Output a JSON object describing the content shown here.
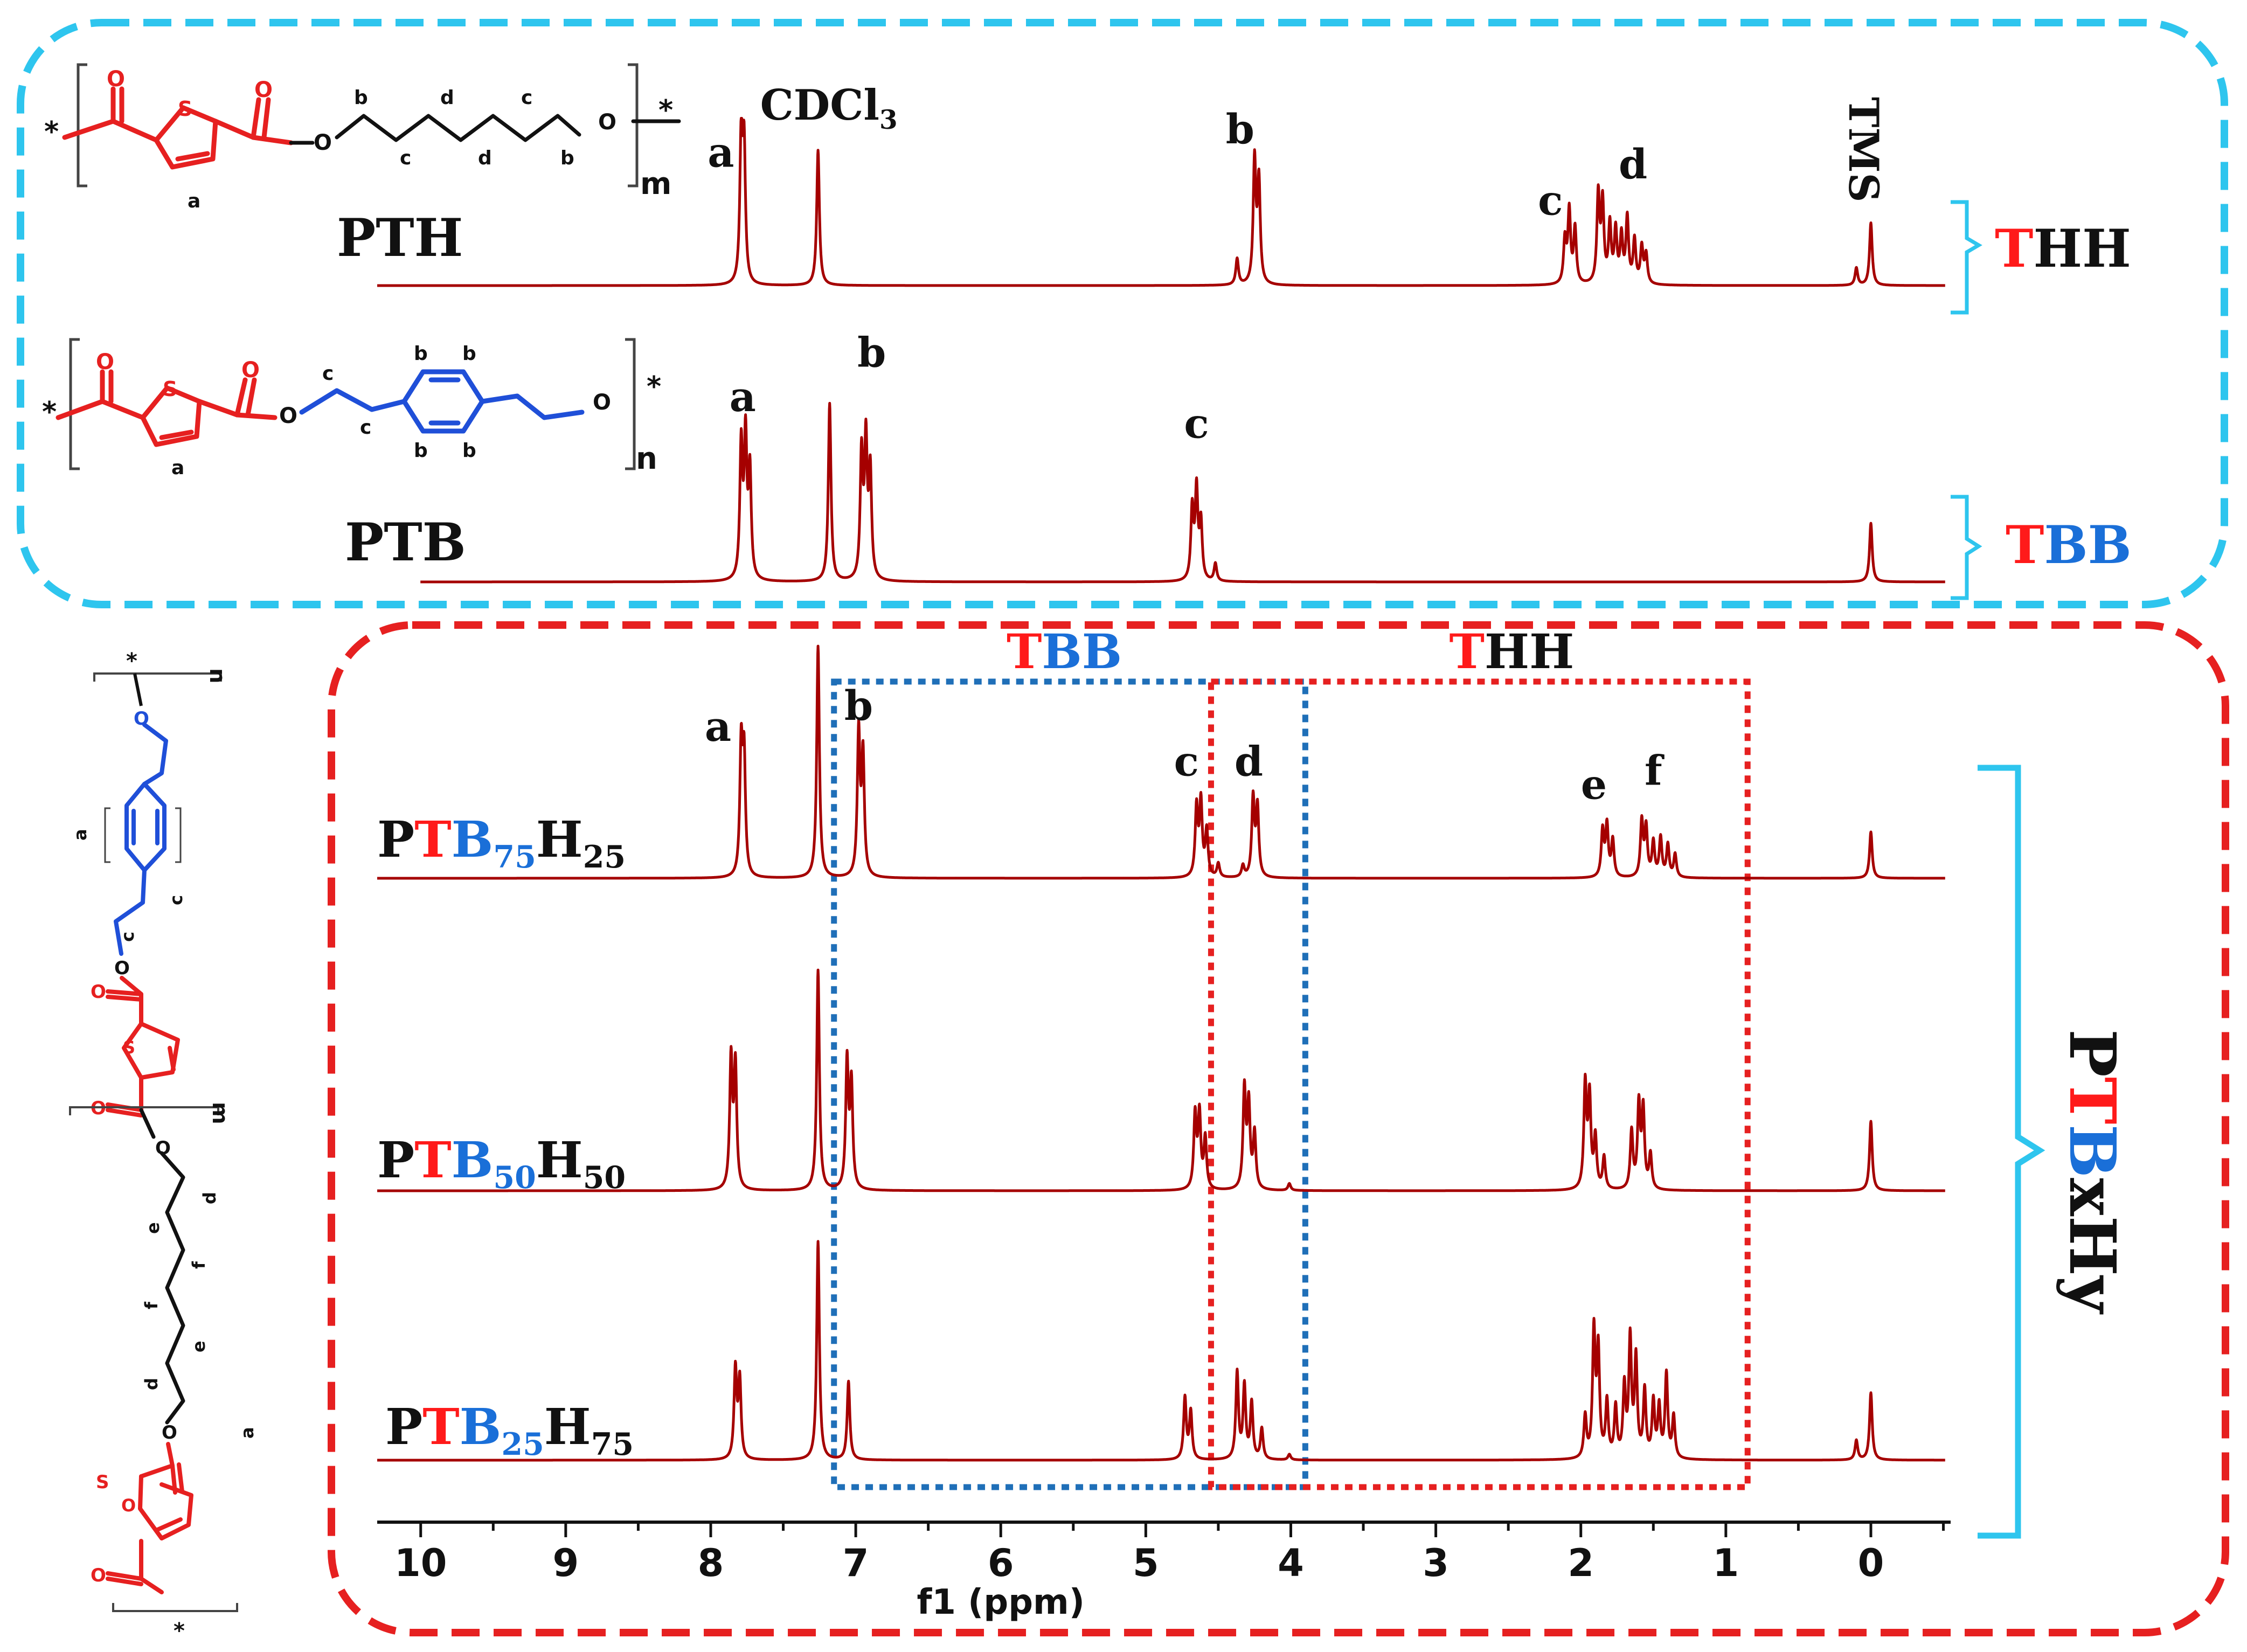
{
  "colors": {
    "spectrum": "#a50000",
    "top_box": "#2ec5ee",
    "bottom_box": "#e62020",
    "bracket": "#2ec5ee",
    "blue_region": "#1f6fb8",
    "red_region": "#e62020",
    "red_text": "#ff1a1a",
    "blue_text": "#1a6fd8"
  },
  "chart_data": {
    "type": "line",
    "xlabel": "f1 (ppm)",
    "xlim": [
      10.3,
      -0.55
    ],
    "xticks": [
      10,
      9,
      8,
      7,
      6,
      5,
      4,
      3,
      2,
      1,
      0
    ],
    "spectra": [
      {
        "id": "PTH",
        "label_parts": [
          {
            "t": "PTH",
            "c": "k"
          }
        ],
        "group": "THH",
        "group_parts": [
          {
            "t": "T",
            "c": "r"
          },
          {
            "t": "HH",
            "c": "k"
          }
        ],
        "peaks": [
          {
            "ppm": 7.79,
            "h": 0.98
          },
          {
            "ppm": 7.77,
            "h": 0.9
          },
          {
            "ppm": 7.26,
            "h": 0.93
          },
          {
            "ppm": 4.37,
            "h": 0.18
          },
          {
            "ppm": 4.25,
            "h": 0.85
          },
          {
            "ppm": 4.22,
            "h": 0.7
          },
          {
            "ppm": 2.11,
            "h": 0.3
          },
          {
            "ppm": 2.08,
            "h": 0.5
          },
          {
            "ppm": 2.04,
            "h": 0.38
          },
          {
            "ppm": 1.88,
            "h": 0.61
          },
          {
            "ppm": 1.85,
            "h": 0.55
          },
          {
            "ppm": 1.8,
            "h": 0.4
          },
          {
            "ppm": 1.76,
            "h": 0.36
          },
          {
            "ppm": 1.72,
            "h": 0.32
          },
          {
            "ppm": 1.68,
            "h": 0.45
          },
          {
            "ppm": 1.63,
            "h": 0.3
          },
          {
            "ppm": 1.58,
            "h": 0.25
          },
          {
            "ppm": 1.55,
            "h": 0.2
          },
          {
            "ppm": 0.1,
            "h": 0.12
          },
          {
            "ppm": 0.0,
            "h": 0.43
          }
        ],
        "peak_labels": [
          {
            "t": "a",
            "ppm": 7.93,
            "dy": 0.78
          },
          {
            "t": "b",
            "ppm": 4.35,
            "dy": 0.94
          },
          {
            "t": "c",
            "ppm": 2.21,
            "dy": 0.45
          },
          {
            "t": "d",
            "ppm": 1.64,
            "dy": 0.7
          }
        ]
      },
      {
        "id": "PTB",
        "label_parts": [
          {
            "t": "PTB",
            "c": "k"
          }
        ],
        "group": "TBB",
        "group_parts": [
          {
            "t": "T",
            "c": "r"
          },
          {
            "t": "BB",
            "c": "b"
          }
        ],
        "peaks": [
          {
            "ppm": 7.79,
            "h": 0.75
          },
          {
            "ppm": 7.76,
            "h": 0.78
          },
          {
            "ppm": 7.73,
            "h": 0.6
          },
          {
            "ppm": 7.18,
            "h": 1.0
          },
          {
            "ppm": 6.96,
            "h": 0.7
          },
          {
            "ppm": 6.93,
            "h": 0.76
          },
          {
            "ppm": 6.9,
            "h": 0.6
          },
          {
            "ppm": 4.68,
            "h": 0.4
          },
          {
            "ppm": 4.65,
            "h": 0.5
          },
          {
            "ppm": 4.62,
            "h": 0.32
          },
          {
            "ppm": 4.52,
            "h": 0.1
          },
          {
            "ppm": 0.0,
            "h": 0.33
          }
        ],
        "peak_labels": [
          {
            "t": "a",
            "ppm": 7.78,
            "dy": 0.93
          },
          {
            "t": "b",
            "ppm": 6.89,
            "dy": 1.18
          },
          {
            "t": "c",
            "ppm": 4.65,
            "dy": 0.78
          }
        ]
      },
      {
        "id": "PTB75H25",
        "label_parts": [
          {
            "t": "P",
            "c": "k"
          },
          {
            "t": "T",
            "c": "r"
          },
          {
            "t": "B",
            "c": "b"
          },
          {
            "t": "75",
            "c": "b",
            "sub": true
          },
          {
            "t": "H",
            "c": "k"
          },
          {
            "t": "25",
            "c": "k",
            "sub": true
          }
        ],
        "peaks": [
          {
            "ppm": 7.79,
            "h": 0.55
          },
          {
            "ppm": 7.77,
            "h": 0.5
          },
          {
            "ppm": 7.26,
            "h": 1.0
          },
          {
            "ppm": 6.98,
            "h": 0.62
          },
          {
            "ppm": 6.95,
            "h": 0.52
          },
          {
            "ppm": 4.65,
            "h": 0.3
          },
          {
            "ppm": 4.62,
            "h": 0.32
          },
          {
            "ppm": 4.58,
            "h": 0.2
          },
          {
            "ppm": 4.5,
            "h": 0.06
          },
          {
            "ppm": 4.33,
            "h": 0.05
          },
          {
            "ppm": 4.26,
            "h": 0.34
          },
          {
            "ppm": 4.23,
            "h": 0.3
          },
          {
            "ppm": 1.85,
            "h": 0.2
          },
          {
            "ppm": 1.82,
            "h": 0.22
          },
          {
            "ppm": 1.78,
            "h": 0.16
          },
          {
            "ppm": 1.58,
            "h": 0.24
          },
          {
            "ppm": 1.55,
            "h": 0.21
          },
          {
            "ppm": 1.5,
            "h": 0.15
          },
          {
            "ppm": 1.45,
            "h": 0.17
          },
          {
            "ppm": 1.4,
            "h": 0.14
          },
          {
            "ppm": 1.35,
            "h": 0.1
          },
          {
            "ppm": 0.0,
            "h": 0.2
          }
        ],
        "peak_labels": [
          {
            "t": "a",
            "ppm": 7.95,
            "dy": 0.57
          },
          {
            "t": "b",
            "ppm": 6.98,
            "dy": 0.66
          },
          {
            "t": "c",
            "ppm": 4.72,
            "dy": 0.42
          },
          {
            "t": "d",
            "ppm": 4.29,
            "dy": 0.42
          },
          {
            "t": "e",
            "ppm": 1.91,
            "dy": 0.32
          },
          {
            "t": "f",
            "ppm": 1.5,
            "dy": 0.38
          }
        ]
      },
      {
        "id": "PTB50H50",
        "label_parts": [
          {
            "t": "P",
            "c": "k"
          },
          {
            "t": "T",
            "c": "r"
          },
          {
            "t": "B",
            "c": "b"
          },
          {
            "t": "50",
            "c": "b",
            "sub": true
          },
          {
            "t": "H",
            "c": "k"
          },
          {
            "t": "50",
            "c": "k",
            "sub": true
          }
        ],
        "peaks": [
          {
            "ppm": 7.86,
            "h": 0.56
          },
          {
            "ppm": 7.83,
            "h": 0.53
          },
          {
            "ppm": 7.26,
            "h": 0.95
          },
          {
            "ppm": 7.06,
            "h": 0.55
          },
          {
            "ppm": 7.03,
            "h": 0.45
          },
          {
            "ppm": 4.66,
            "h": 0.32
          },
          {
            "ppm": 4.63,
            "h": 0.32
          },
          {
            "ppm": 4.59,
            "h": 0.22
          },
          {
            "ppm": 4.32,
            "h": 0.43
          },
          {
            "ppm": 4.29,
            "h": 0.36
          },
          {
            "ppm": 4.25,
            "h": 0.24
          },
          {
            "ppm": 4.01,
            "h": 0.03
          },
          {
            "ppm": 1.97,
            "h": 0.45
          },
          {
            "ppm": 1.94,
            "h": 0.39
          },
          {
            "ppm": 1.9,
            "h": 0.22
          },
          {
            "ppm": 1.84,
            "h": 0.14
          },
          {
            "ppm": 1.65,
            "h": 0.25
          },
          {
            "ppm": 1.6,
            "h": 0.36
          },
          {
            "ppm": 1.57,
            "h": 0.34
          },
          {
            "ppm": 1.52,
            "h": 0.15
          },
          {
            "ppm": 0.0,
            "h": 0.3
          }
        ]
      },
      {
        "id": "PTB25H75",
        "label_parts": [
          {
            "t": "P",
            "c": "k"
          },
          {
            "t": "T",
            "c": "r"
          },
          {
            "t": "B",
            "c": "b"
          },
          {
            "t": "25",
            "c": "b",
            "sub": true
          },
          {
            "t": "H",
            "c": "k"
          },
          {
            "t": "75",
            "c": "k",
            "sub": true
          }
        ],
        "peaks": [
          {
            "ppm": 7.83,
            "h": 0.32
          },
          {
            "ppm": 7.8,
            "h": 0.28
          },
          {
            "ppm": 7.26,
            "h": 0.78
          },
          {
            "ppm": 7.05,
            "h": 0.28
          },
          {
            "ppm": 4.73,
            "h": 0.22
          },
          {
            "ppm": 4.69,
            "h": 0.17
          },
          {
            "ppm": 4.37,
            "h": 0.31
          },
          {
            "ppm": 4.32,
            "h": 0.26
          },
          {
            "ppm": 4.27,
            "h": 0.2
          },
          {
            "ppm": 4.2,
            "h": 0.11
          },
          {
            "ppm": 4.01,
            "h": 0.02
          },
          {
            "ppm": 1.97,
            "h": 0.15
          },
          {
            "ppm": 1.91,
            "h": 0.45
          },
          {
            "ppm": 1.88,
            "h": 0.38
          },
          {
            "ppm": 1.82,
            "h": 0.2
          },
          {
            "ppm": 1.76,
            "h": 0.18
          },
          {
            "ppm": 1.7,
            "h": 0.25
          },
          {
            "ppm": 1.66,
            "h": 0.42
          },
          {
            "ppm": 1.62,
            "h": 0.35
          },
          {
            "ppm": 1.56,
            "h": 0.24
          },
          {
            "ppm": 1.5,
            "h": 0.2
          },
          {
            "ppm": 1.46,
            "h": 0.18
          },
          {
            "ppm": 1.41,
            "h": 0.3
          },
          {
            "ppm": 1.36,
            "h": 0.15
          },
          {
            "ppm": 0.1,
            "h": 0.07
          },
          {
            "ppm": 0.0,
            "h": 0.24
          }
        ]
      }
    ],
    "annotations": {
      "cdcl3_parts": [
        {
          "t": "CDCl",
          "c": "k"
        },
        {
          "t": "3",
          "c": "k",
          "sub": true
        }
      ],
      "tms": "TMS",
      "bottom_group_parts": [
        {
          "t": "P",
          "c": "k"
        },
        {
          "t": "T",
          "c": "r"
        },
        {
          "t": "B",
          "c": "b"
        },
        {
          "t": "xHy",
          "c": "k"
        }
      ],
      "region_tbb_parts": [
        {
          "t": "T",
          "c": "r"
        },
        {
          "t": "BB",
          "c": "b"
        }
      ],
      "region_thh_parts": [
        {
          "t": "T",
          "c": "r"
        },
        {
          "t": "HH",
          "c": "k"
        }
      ],
      "tbb_range": [
        7.15,
        3.9
      ],
      "thh_range": [
        4.55,
        0.85
      ]
    }
  },
  "structures": {
    "pth": {
      "atoms": [
        "O",
        "S",
        "O",
        "O",
        "O",
        "*",
        "*"
      ],
      "chain_letters": [
        "b",
        "c",
        "d",
        "c",
        "d",
        "b"
      ],
      "ring_letter": "a",
      "repeat": "m"
    },
    "ptb": {
      "atoms": [
        "O",
        "S",
        "O",
        "O",
        "O",
        "*",
        "*"
      ],
      "chain_letters": [
        "c",
        "c"
      ],
      "phenyl_letters": [
        "b",
        "b",
        "b",
        "b"
      ],
      "ring_letter": "a",
      "repeat": "n"
    },
    "copolymer": {
      "atoms": [
        "O",
        "S",
        "O",
        "O",
        "O",
        "O",
        "S",
        "O",
        "O",
        "*",
        "*"
      ],
      "letters": [
        "a",
        "c",
        "c",
        "d",
        "e",
        "f",
        "f",
        "e",
        "d",
        "a"
      ],
      "repeats": [
        "n",
        "m"
      ]
    }
  }
}
